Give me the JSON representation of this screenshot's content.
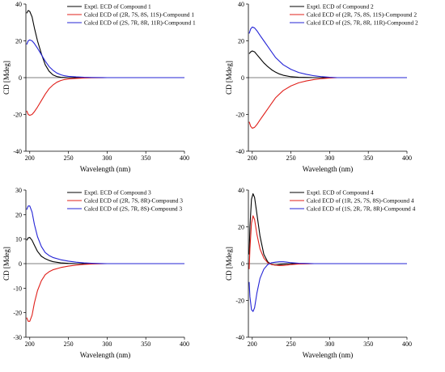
{
  "colors": {
    "expt": "#000000",
    "calc_a": "#e0201b",
    "calc_b": "#2424d6",
    "axis": "#000000",
    "zero": "#000000"
  },
  "chart_data": [
    {
      "type": "line",
      "xlabel": "Wavelength (nm)",
      "ylabel": "CD [Mdeg]",
      "xlim": [
        195,
        400
      ],
      "ylim": [
        -40,
        40
      ],
      "xticks": [
        200,
        250,
        300,
        350,
        400
      ],
      "yticks": [
        -40,
        -20,
        0,
        20,
        40
      ],
      "legend_position": "top-right",
      "grid": false,
      "series": [
        {
          "name": "Exptl. ECD of Compound 1",
          "color": "#000000",
          "x": [
            196,
            198,
            200,
            203,
            206,
            210,
            215,
            220,
            225,
            230,
            235,
            240,
            250,
            260,
            280,
            300,
            350,
            400
          ],
          "y": [
            35,
            36.5,
            36,
            33,
            27,
            20,
            13,
            7,
            3.5,
            1.5,
            0.6,
            0.2,
            0,
            0,
            0,
            0,
            0,
            0
          ]
        },
        {
          "name": "Calcd ECD of (2R, 7S, 8S, 11S)-Compound 1",
          "color": "#e0201b",
          "x": [
            196,
            198,
            200,
            203,
            206,
            210,
            215,
            220,
            225,
            230,
            235,
            240,
            245,
            250,
            260,
            270,
            280,
            300,
            350,
            400
          ],
          "y": [
            -18,
            -20,
            -20.5,
            -20,
            -18.5,
            -16,
            -12.5,
            -9,
            -6,
            -4,
            -2.5,
            -1.6,
            -1,
            -0.7,
            -0.4,
            -0.2,
            -0.1,
            0,
            0,
            0
          ]
        },
        {
          "name": "Calcd ECD of (2S, 7R, 8R, 11R)-Compound 1",
          "color": "#2424d6",
          "x": [
            196,
            198,
            200,
            203,
            206,
            210,
            215,
            220,
            225,
            230,
            235,
            240,
            245,
            250,
            260,
            270,
            280,
            300,
            350,
            400
          ],
          "y": [
            18,
            20,
            20.5,
            20,
            18.5,
            16,
            12.5,
            9,
            6,
            4,
            2.5,
            1.6,
            1,
            0.7,
            0.4,
            0.2,
            0.1,
            0,
            0,
            0
          ]
        }
      ]
    },
    {
      "type": "line",
      "xlabel": "Wavelength (nm)",
      "ylabel": "CD [Mdeg]",
      "xlim": [
        195,
        400
      ],
      "ylim": [
        -40,
        40
      ],
      "xticks": [
        200,
        250,
        300,
        350,
        400
      ],
      "yticks": [
        -40,
        -20,
        0,
        20,
        40
      ],
      "legend_position": "top-right",
      "grid": false,
      "series": [
        {
          "name": "Exptl. ECD of Compound 2",
          "color": "#000000",
          "x": [
            196,
            198,
            200,
            203,
            206,
            210,
            215,
            220,
            225,
            230,
            235,
            240,
            250,
            260,
            280,
            300,
            350,
            400
          ],
          "y": [
            13,
            14,
            14.5,
            14,
            12.5,
            10.5,
            8,
            6,
            4.3,
            3,
            2,
            1.3,
            0.5,
            0.2,
            0,
            0,
            0,
            0
          ]
        },
        {
          "name": "Calcd ECD of (2R, 7S, 8S, 11S)-Compound 2",
          "color": "#e0201b",
          "x": [
            196,
            198,
            200,
            203,
            206,
            210,
            215,
            220,
            225,
            230,
            240,
            250,
            260,
            270,
            280,
            290,
            300,
            310,
            350,
            400
          ],
          "y": [
            -24,
            -26.5,
            -27.5,
            -27,
            -25.5,
            -23,
            -20,
            -17,
            -14,
            -11,
            -7,
            -4.5,
            -2.8,
            -1.8,
            -1,
            -0.5,
            -0.2,
            0,
            0,
            0
          ]
        },
        {
          "name": "Calcd ECD of (2S, 7R, 8R, 11R)-Compound 2",
          "color": "#2424d6",
          "x": [
            196,
            198,
            200,
            203,
            206,
            210,
            215,
            220,
            225,
            230,
            240,
            250,
            260,
            270,
            280,
            290,
            300,
            310,
            350,
            400
          ],
          "y": [
            24,
            26.5,
            27.5,
            27,
            25.5,
            23,
            20,
            17,
            14,
            11,
            7,
            4.5,
            2.8,
            1.8,
            1,
            0.5,
            0.2,
            0,
            0,
            0
          ]
        }
      ]
    },
    {
      "type": "line",
      "xlabel": "Wavelength (nm)",
      "ylabel": "CD [Mdeg]",
      "xlim": [
        195,
        400
      ],
      "ylim": [
        -30,
        30
      ],
      "xticks": [
        200,
        250,
        300,
        350,
        400
      ],
      "yticks": [
        -30,
        -20,
        -10,
        0,
        10,
        20,
        30
      ],
      "legend_position": "top-right",
      "grid": false,
      "series": [
        {
          "name": "Exptl. ECD of Compound 3",
          "color": "#000000",
          "x": [
            196,
            198,
            200,
            203,
            206,
            210,
            215,
            220,
            225,
            230,
            240,
            250,
            260,
            300,
            350,
            400
          ],
          "y": [
            9.5,
            10.5,
            10.7,
            9.5,
            7.5,
            5,
            3,
            2,
            1.3,
            0.8,
            0.3,
            0.1,
            0,
            0,
            0,
            0
          ]
        },
        {
          "name": "Calcd ECD of (2R, 7S, 8R)-Compound 3",
          "color": "#e0201b",
          "x": [
            196,
            198,
            200,
            203,
            206,
            210,
            215,
            220,
            225,
            230,
            240,
            250,
            260,
            270,
            280,
            290,
            300,
            350,
            400
          ],
          "y": [
            -22,
            -23.5,
            -23.5,
            -21,
            -16,
            -11,
            -7,
            -4.5,
            -3.3,
            -2.5,
            -1.6,
            -1,
            -0.6,
            -0.3,
            -0.15,
            -0.05,
            0,
            0,
            0
          ]
        },
        {
          "name": "Calcd ECD of (2S, 7R, 8S)-Compound 3",
          "color": "#2424d6",
          "x": [
            196,
            198,
            200,
            203,
            206,
            210,
            215,
            220,
            225,
            230,
            240,
            250,
            260,
            270,
            280,
            290,
            300,
            350,
            400
          ],
          "y": [
            22,
            23.5,
            23.5,
            21,
            16,
            11,
            7,
            4.5,
            3.3,
            2.5,
            1.6,
            1,
            0.6,
            0.3,
            0.15,
            0.05,
            0,
            0,
            0
          ]
        }
      ]
    },
    {
      "type": "line",
      "xlabel": "Wavelength (nm)",
      "ylabel": "CD [Mdeg]",
      "xlim": [
        195,
        400
      ],
      "ylim": [
        -40,
        40
      ],
      "xticks": [
        200,
        250,
        300,
        350,
        400
      ],
      "yticks": [
        -40,
        -20,
        0,
        20,
        40
      ],
      "legend_position": "top-right",
      "grid": false,
      "series": [
        {
          "name": "Exptl. ECD of Compound 4",
          "color": "#000000",
          "x": [
            196,
            197,
            199,
            201,
            203,
            206,
            210,
            215,
            220,
            225,
            230,
            240,
            250,
            260,
            300,
            350,
            400
          ],
          "y": [
            5,
            20,
            35,
            38,
            36,
            27,
            15,
            5,
            1,
            -0.5,
            -0.8,
            -0.3,
            0,
            0,
            0,
            0,
            0
          ]
        },
        {
          "name": "Calcd ECD of (1R, 2S, 7S, 8S)-Compound 4",
          "color": "#e0201b",
          "x": [
            196,
            197,
            199,
            201,
            203,
            206,
            210,
            215,
            220,
            225,
            230,
            235,
            240,
            245,
            250,
            260,
            280,
            300,
            350,
            400
          ],
          "y": [
            -3,
            8,
            22,
            26,
            24,
            16,
            8,
            3,
            0.5,
            -0.5,
            -0.8,
            -1,
            -1,
            -0.8,
            -0.5,
            -0.2,
            0,
            0,
            0,
            0
          ]
        },
        {
          "name": "Calcd ECD of (1S, 2R, 7R, 8R)-Compound 4",
          "color": "#2424d6",
          "x": [
            196,
            197,
            199,
            201,
            203,
            206,
            210,
            215,
            220,
            225,
            230,
            235,
            240,
            245,
            250,
            260,
            280,
            300,
            350,
            400
          ],
          "y": [
            -10,
            -18,
            -25,
            -26,
            -24,
            -16,
            -8,
            -3,
            -0.5,
            0.5,
            0.8,
            1,
            1,
            0.8,
            0.5,
            0.2,
            0,
            0,
            0,
            0
          ]
        }
      ]
    }
  ]
}
